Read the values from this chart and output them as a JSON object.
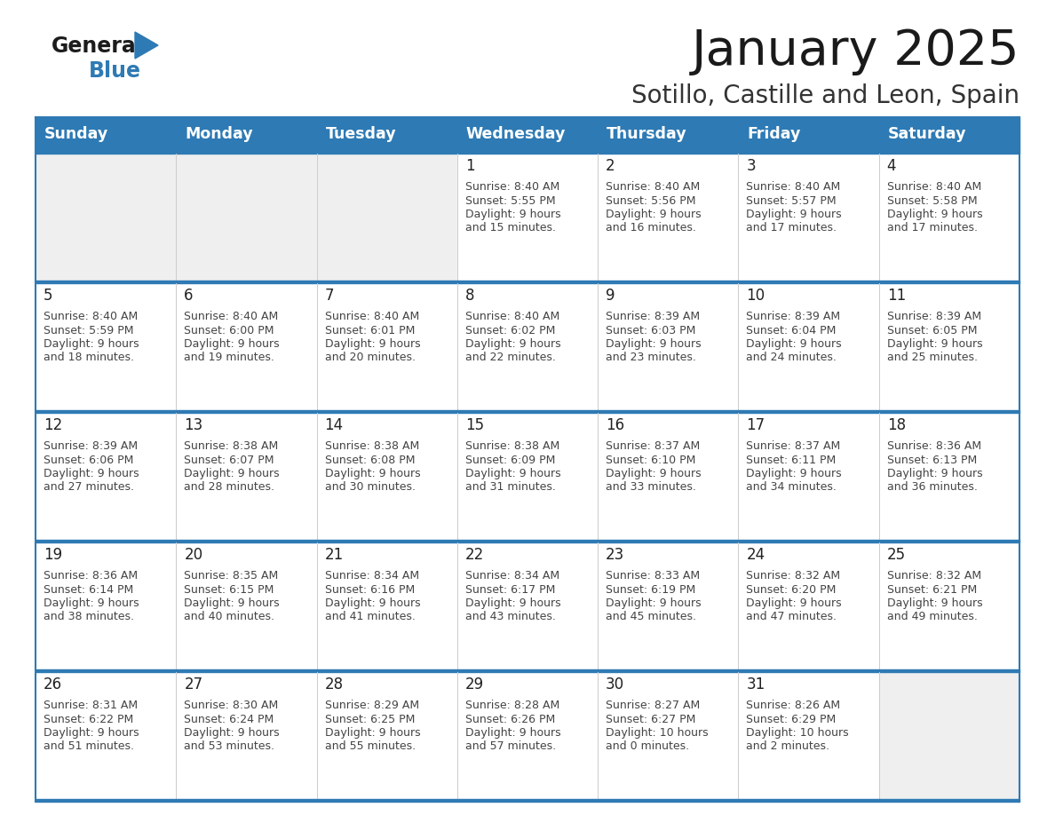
{
  "title": "January 2025",
  "subtitle": "Sotillo, Castille and Leon, Spain",
  "days_of_week": [
    "Sunday",
    "Monday",
    "Tuesday",
    "Wednesday",
    "Thursday",
    "Friday",
    "Saturday"
  ],
  "header_bg_color": "#2E7AB4",
  "header_text_color": "#FFFFFF",
  "empty_cell_bg": "#EFEFEF",
  "filled_cell_bg": "#FFFFFF",
  "row_separator_color": "#2E7AB4",
  "day_number_color": "#222222",
  "cell_text_color": "#444444",
  "title_color": "#1a1a1a",
  "subtitle_color": "#333333",
  "calendar_data": [
    [
      {
        "day": null,
        "sunrise": null,
        "sunset": null,
        "daylight_hrs": null,
        "daylight_min": null
      },
      {
        "day": null,
        "sunrise": null,
        "sunset": null,
        "daylight_hrs": null,
        "daylight_min": null
      },
      {
        "day": null,
        "sunrise": null,
        "sunset": null,
        "daylight_hrs": null,
        "daylight_min": null
      },
      {
        "day": 1,
        "sunrise": "8:40 AM",
        "sunset": "5:55 PM",
        "daylight_hrs": "9 hours",
        "daylight_min": "and 15 minutes."
      },
      {
        "day": 2,
        "sunrise": "8:40 AM",
        "sunset": "5:56 PM",
        "daylight_hrs": "9 hours",
        "daylight_min": "and 16 minutes."
      },
      {
        "day": 3,
        "sunrise": "8:40 AM",
        "sunset": "5:57 PM",
        "daylight_hrs": "9 hours",
        "daylight_min": "and 17 minutes."
      },
      {
        "day": 4,
        "sunrise": "8:40 AM",
        "sunset": "5:58 PM",
        "daylight_hrs": "9 hours",
        "daylight_min": "and 17 minutes."
      }
    ],
    [
      {
        "day": 5,
        "sunrise": "8:40 AM",
        "sunset": "5:59 PM",
        "daylight_hrs": "9 hours",
        "daylight_min": "and 18 minutes."
      },
      {
        "day": 6,
        "sunrise": "8:40 AM",
        "sunset": "6:00 PM",
        "daylight_hrs": "9 hours",
        "daylight_min": "and 19 minutes."
      },
      {
        "day": 7,
        "sunrise": "8:40 AM",
        "sunset": "6:01 PM",
        "daylight_hrs": "9 hours",
        "daylight_min": "and 20 minutes."
      },
      {
        "day": 8,
        "sunrise": "8:40 AM",
        "sunset": "6:02 PM",
        "daylight_hrs": "9 hours",
        "daylight_min": "and 22 minutes."
      },
      {
        "day": 9,
        "sunrise": "8:39 AM",
        "sunset": "6:03 PM",
        "daylight_hrs": "9 hours",
        "daylight_min": "and 23 minutes."
      },
      {
        "day": 10,
        "sunrise": "8:39 AM",
        "sunset": "6:04 PM",
        "daylight_hrs": "9 hours",
        "daylight_min": "and 24 minutes."
      },
      {
        "day": 11,
        "sunrise": "8:39 AM",
        "sunset": "6:05 PM",
        "daylight_hrs": "9 hours",
        "daylight_min": "and 25 minutes."
      }
    ],
    [
      {
        "day": 12,
        "sunrise": "8:39 AM",
        "sunset": "6:06 PM",
        "daylight_hrs": "9 hours",
        "daylight_min": "and 27 minutes."
      },
      {
        "day": 13,
        "sunrise": "8:38 AM",
        "sunset": "6:07 PM",
        "daylight_hrs": "9 hours",
        "daylight_min": "and 28 minutes."
      },
      {
        "day": 14,
        "sunrise": "8:38 AM",
        "sunset": "6:08 PM",
        "daylight_hrs": "9 hours",
        "daylight_min": "and 30 minutes."
      },
      {
        "day": 15,
        "sunrise": "8:38 AM",
        "sunset": "6:09 PM",
        "daylight_hrs": "9 hours",
        "daylight_min": "and 31 minutes."
      },
      {
        "day": 16,
        "sunrise": "8:37 AM",
        "sunset": "6:10 PM",
        "daylight_hrs": "9 hours",
        "daylight_min": "and 33 minutes."
      },
      {
        "day": 17,
        "sunrise": "8:37 AM",
        "sunset": "6:11 PM",
        "daylight_hrs": "9 hours",
        "daylight_min": "and 34 minutes."
      },
      {
        "day": 18,
        "sunrise": "8:36 AM",
        "sunset": "6:13 PM",
        "daylight_hrs": "9 hours",
        "daylight_min": "and 36 minutes."
      }
    ],
    [
      {
        "day": 19,
        "sunrise": "8:36 AM",
        "sunset": "6:14 PM",
        "daylight_hrs": "9 hours",
        "daylight_min": "and 38 minutes."
      },
      {
        "day": 20,
        "sunrise": "8:35 AM",
        "sunset": "6:15 PM",
        "daylight_hrs": "9 hours",
        "daylight_min": "and 40 minutes."
      },
      {
        "day": 21,
        "sunrise": "8:34 AM",
        "sunset": "6:16 PM",
        "daylight_hrs": "9 hours",
        "daylight_min": "and 41 minutes."
      },
      {
        "day": 22,
        "sunrise": "8:34 AM",
        "sunset": "6:17 PM",
        "daylight_hrs": "9 hours",
        "daylight_min": "and 43 minutes."
      },
      {
        "day": 23,
        "sunrise": "8:33 AM",
        "sunset": "6:19 PM",
        "daylight_hrs": "9 hours",
        "daylight_min": "and 45 minutes."
      },
      {
        "day": 24,
        "sunrise": "8:32 AM",
        "sunset": "6:20 PM",
        "daylight_hrs": "9 hours",
        "daylight_min": "and 47 minutes."
      },
      {
        "day": 25,
        "sunrise": "8:32 AM",
        "sunset": "6:21 PM",
        "daylight_hrs": "9 hours",
        "daylight_min": "and 49 minutes."
      }
    ],
    [
      {
        "day": 26,
        "sunrise": "8:31 AM",
        "sunset": "6:22 PM",
        "daylight_hrs": "9 hours",
        "daylight_min": "and 51 minutes."
      },
      {
        "day": 27,
        "sunrise": "8:30 AM",
        "sunset": "6:24 PM",
        "daylight_hrs": "9 hours",
        "daylight_min": "and 53 minutes."
      },
      {
        "day": 28,
        "sunrise": "8:29 AM",
        "sunset": "6:25 PM",
        "daylight_hrs": "9 hours",
        "daylight_min": "and 55 minutes."
      },
      {
        "day": 29,
        "sunrise": "8:28 AM",
        "sunset": "6:26 PM",
        "daylight_hrs": "9 hours",
        "daylight_min": "and 57 minutes."
      },
      {
        "day": 30,
        "sunrise": "8:27 AM",
        "sunset": "6:27 PM",
        "daylight_hrs": "10 hours",
        "daylight_min": "and 0 minutes."
      },
      {
        "day": 31,
        "sunrise": "8:26 AM",
        "sunset": "6:29 PM",
        "daylight_hrs": "10 hours",
        "daylight_min": "and 2 minutes."
      },
      {
        "day": null,
        "sunrise": null,
        "sunset": null,
        "daylight_hrs": null,
        "daylight_min": null
      }
    ]
  ]
}
